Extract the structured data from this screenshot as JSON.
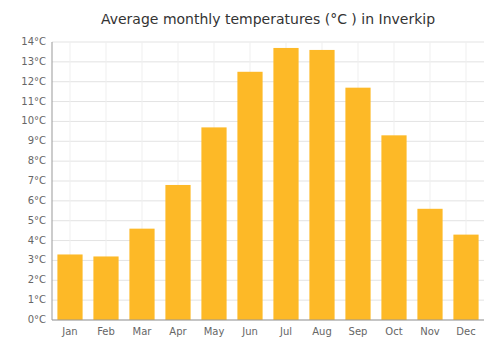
{
  "chart_data": {
    "type": "bar",
    "title": "Average monthly temperatures (°C ) in Inverkip",
    "categories": [
      "Jan",
      "Feb",
      "Mar",
      "Apr",
      "May",
      "Jun",
      "Jul",
      "Aug",
      "Sep",
      "Oct",
      "Nov",
      "Dec"
    ],
    "values": [
      3.3,
      3.2,
      4.6,
      6.8,
      9.7,
      12.5,
      13.7,
      13.6,
      11.7,
      9.3,
      5.6,
      4.3
    ],
    "color": "#FDB927",
    "ylim": [
      0,
      14
    ],
    "yticks": [
      {
        "value": 0,
        "label": "0°C"
      },
      {
        "value": 1,
        "label": "1°C"
      },
      {
        "value": 2,
        "label": "2°C"
      },
      {
        "value": 3,
        "label": "3°C"
      },
      {
        "value": 4,
        "label": "4°C"
      },
      {
        "value": 5,
        "label": "5°C"
      },
      {
        "value": 6,
        "label": "6°C"
      },
      {
        "value": 7,
        "label": "7°C"
      },
      {
        "value": 8,
        "label": "8°C"
      },
      {
        "value": 9,
        "label": "9°C"
      },
      {
        "value": 10,
        "label": "10°C"
      },
      {
        "value": 11,
        "label": "11°C"
      },
      {
        "value": 12,
        "label": "12°C"
      },
      {
        "value": 13,
        "label": "13°C"
      },
      {
        "value": 14,
        "label": "14°C"
      }
    ],
    "grid": true
  }
}
